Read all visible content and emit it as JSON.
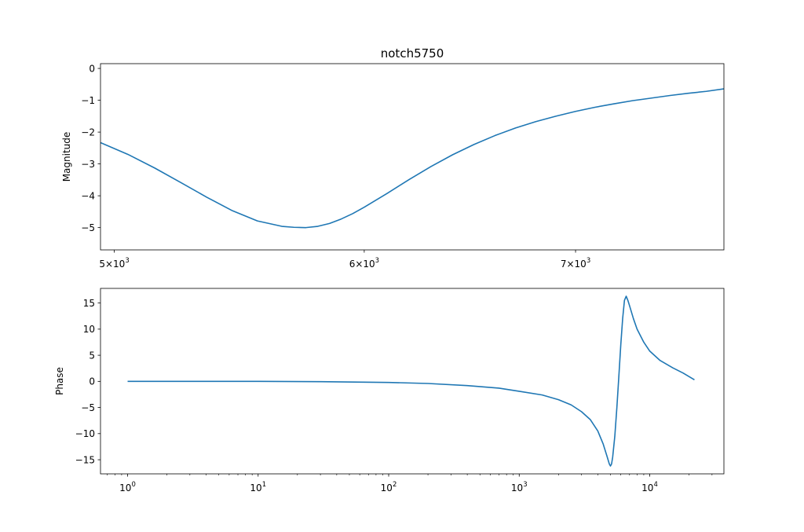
{
  "chart_data": [
    {
      "type": "line",
      "title": "notch5750",
      "xlabel": "",
      "ylabel": "Magnitude",
      "xscale": "log",
      "xlim": [
        4950,
        7800
      ],
      "ylim": [
        -5.7,
        0.15
      ],
      "grid": false,
      "color": "#1f77b4",
      "xticks": [
        {
          "value": 5000,
          "label": "5",
          "exp": "3"
        },
        {
          "value": 6000,
          "label": "6",
          "exp": "3"
        },
        {
          "value": 7000,
          "label": "7",
          "exp": "3"
        }
      ],
      "yticks": [
        0,
        -1,
        -2,
        -3,
        -4,
        -5
      ],
      "series": [
        {
          "x": [
            4950,
            5050,
            5150,
            5250,
            5350,
            5450,
            5550,
            5650,
            5700,
            5750,
            5800,
            5850,
            5900,
            5950,
            6000,
            6100,
            6200,
            6300,
            6400,
            6500,
            6600,
            6700,
            6800,
            6900,
            7000,
            7100,
            7200,
            7300,
            7400,
            7500,
            7600,
            7700,
            7800
          ],
          "y": [
            -2.33,
            -2.7,
            -3.13,
            -3.59,
            -4.05,
            -4.47,
            -4.79,
            -4.96,
            -4.99,
            -5.0,
            -4.96,
            -4.87,
            -4.73,
            -4.56,
            -4.36,
            -3.93,
            -3.49,
            -3.08,
            -2.71,
            -2.39,
            -2.11,
            -1.87,
            -1.67,
            -1.5,
            -1.35,
            -1.22,
            -1.11,
            -1.01,
            -0.93,
            -0.85,
            -0.78,
            -0.72,
            -0.64
          ]
        }
      ]
    },
    {
      "type": "line",
      "title": "",
      "xlabel": "",
      "ylabel": "Phase",
      "xscale": "log",
      "xlim": [
        0.62,
        37000
      ],
      "ylim": [
        -17.7,
        17.8
      ],
      "grid": false,
      "color": "#1f77b4",
      "xticks": [
        {
          "value": 1,
          "label": "10",
          "exp": "0"
        },
        {
          "value": 10,
          "label": "10",
          "exp": "1"
        },
        {
          "value": 100,
          "label": "10",
          "exp": "2"
        },
        {
          "value": 1000,
          "label": "10",
          "exp": "3"
        },
        {
          "value": 10000,
          "label": "10",
          "exp": "4"
        }
      ],
      "yticks": [
        15,
        10,
        5,
        0,
        -5,
        -10,
        -15
      ],
      "series": [
        {
          "x": [
            1,
            3,
            10,
            30,
            100,
            200,
            400,
            700,
            1000,
            1500,
            2000,
            2500,
            3000,
            3500,
            4000,
            4400,
            4700,
            4900,
            5000,
            5100,
            5200,
            5400,
            5600,
            5800,
            6000,
            6200,
            6400,
            6600,
            6800,
            7000,
            7500,
            8000,
            9000,
            10000,
            12000,
            15000,
            18000,
            22000
          ],
          "y": [
            0,
            0,
            0,
            -0.05,
            -0.2,
            -0.4,
            -0.8,
            -1.3,
            -1.9,
            -2.6,
            -3.5,
            -4.5,
            -5.8,
            -7.3,
            -9.5,
            -12,
            -14.3,
            -15.8,
            -16.2,
            -15.8,
            -14.5,
            -10.5,
            -5,
            1,
            7,
            12,
            15.5,
            16.3,
            15.5,
            14.5,
            12,
            10,
            7.5,
            5.8,
            4,
            2.6,
            1.6,
            0.3
          ]
        }
      ]
    }
  ]
}
